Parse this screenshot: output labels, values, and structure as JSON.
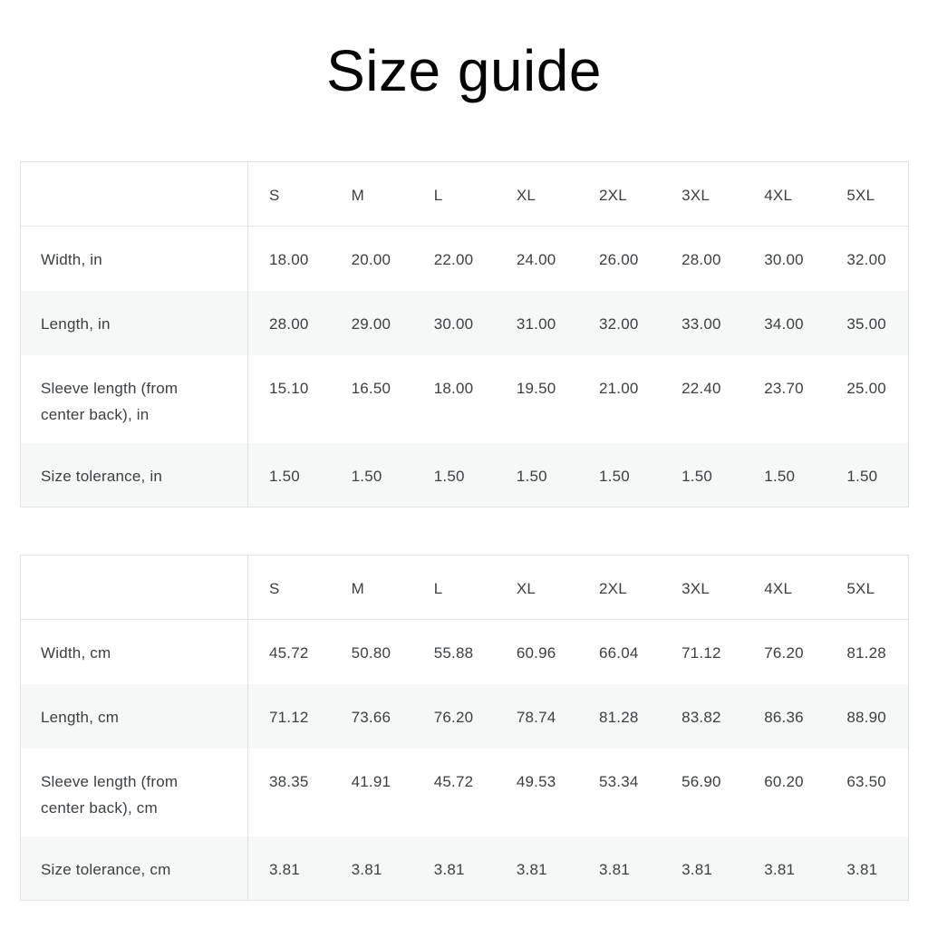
{
  "page": {
    "title": "Size guide"
  },
  "size_columns": [
    "S",
    "M",
    "L",
    "XL",
    "2XL",
    "3XL",
    "4XL",
    "5XL"
  ],
  "tables": [
    {
      "name": "inches",
      "rows": [
        {
          "label": "Width, in",
          "values": [
            "18.00",
            "20.00",
            "22.00",
            "24.00",
            "26.00",
            "28.00",
            "30.00",
            "32.00"
          ]
        },
        {
          "label": "Length, in",
          "values": [
            "28.00",
            "29.00",
            "30.00",
            "31.00",
            "32.00",
            "33.00",
            "34.00",
            "35.00"
          ]
        },
        {
          "label": "Sleeve length (from center back), in",
          "values": [
            "15.10",
            "16.50",
            "18.00",
            "19.50",
            "21.00",
            "22.40",
            "23.70",
            "25.00"
          ]
        },
        {
          "label": "Size tolerance, in",
          "values": [
            "1.50",
            "1.50",
            "1.50",
            "1.50",
            "1.50",
            "1.50",
            "1.50",
            "1.50"
          ]
        }
      ]
    },
    {
      "name": "centimeters",
      "rows": [
        {
          "label": "Width, cm",
          "values": [
            "45.72",
            "50.80",
            "55.88",
            "60.96",
            "66.04",
            "71.12",
            "76.20",
            "81.28"
          ]
        },
        {
          "label": "Length, cm",
          "values": [
            "71.12",
            "73.66",
            "76.20",
            "78.74",
            "81.28",
            "83.82",
            "86.36",
            "88.90"
          ]
        },
        {
          "label": "Sleeve length (from center back), cm",
          "values": [
            "38.35",
            "41.91",
            "45.72",
            "49.53",
            "53.34",
            "56.90",
            "60.20",
            "63.50"
          ]
        },
        {
          "label": "Size tolerance, cm",
          "values": [
            "3.81",
            "3.81",
            "3.81",
            "3.81",
            "3.81",
            "3.81",
            "3.81",
            "3.81"
          ]
        }
      ]
    }
  ]
}
